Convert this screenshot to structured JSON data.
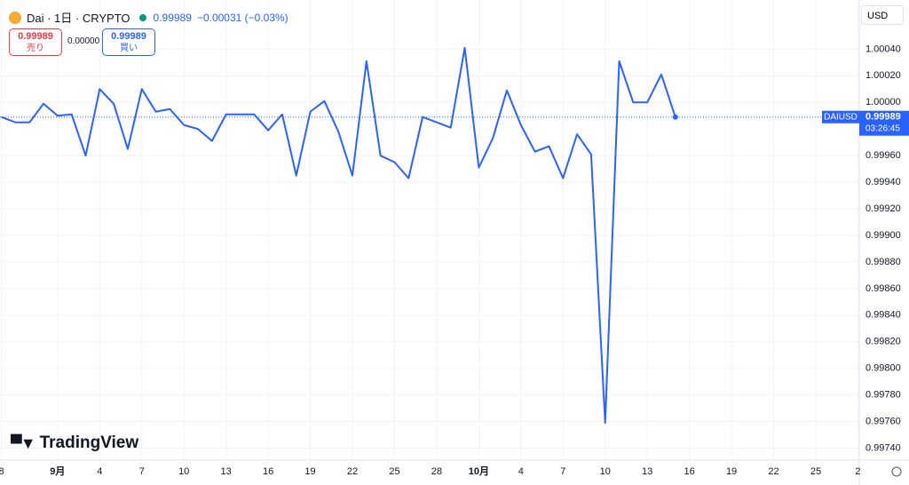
{
  "header": {
    "symbol": "Dai · 1日 · CRYPTO",
    "price": "0.99989",
    "change": "−0.00031 (−0.03%)",
    "sell_price": "0.99989",
    "sell_label": "売り",
    "spread": "0.00000",
    "buy_price": "0.99989",
    "buy_label": "買い",
    "currency": "USD",
    "logo": "TradingView"
  },
  "chart_data": {
    "type": "line",
    "x": [
      -4,
      -3,
      -2,
      -1,
      0,
      1,
      2,
      3,
      4,
      5,
      6,
      7,
      8,
      9,
      10,
      11,
      12,
      13,
      14,
      15,
      16,
      17,
      18,
      19,
      20,
      21,
      22,
      23,
      24,
      25,
      26,
      27,
      28,
      29,
      30,
      31,
      32,
      33,
      34,
      35,
      36,
      37,
      38,
      39,
      40,
      41,
      42,
      43,
      44
    ],
    "series": [
      {
        "name": "DAIUSD",
        "color": "#2962ff",
        "values": [
          0.99989,
          0.99985,
          0.99985,
          0.99999,
          0.9999,
          0.99991,
          0.9996,
          1.0001,
          0.99999,
          0.99965,
          1.0001,
          0.99993,
          0.99995,
          0.99983,
          0.9998,
          0.99971,
          0.99991,
          0.99991,
          0.99991,
          0.99979,
          0.99991,
          0.99945,
          0.99993,
          1.00001,
          0.99978,
          0.99945,
          1.00031,
          0.9996,
          0.99955,
          0.99943,
          0.99989,
          0.99985,
          0.99981,
          1.00041,
          0.99951,
          0.99973,
          1.00009,
          0.99983,
          0.99963,
          0.99967,
          0.99943,
          0.99976,
          0.99961,
          0.99759,
          1.00031,
          1.0,
          1.0,
          1.00021,
          0.99989
        ]
      }
    ],
    "price_label": {
      "symbol": "DAIUSD",
      "price": "0.99989",
      "countdown": "03:26:45"
    },
    "xlim": [
      -4.1,
      57.1
    ],
    "xticks": [
      {
        "value": -4,
        "label": "8"
      },
      {
        "value": 0,
        "label": "9月"
      },
      {
        "value": 3,
        "label": "4"
      },
      {
        "value": 6,
        "label": "7"
      },
      {
        "value": 9,
        "label": "10"
      },
      {
        "value": 12,
        "label": "13"
      },
      {
        "value": 15,
        "label": "16"
      },
      {
        "value": 18,
        "label": "19"
      },
      {
        "value": 21,
        "label": "22"
      },
      {
        "value": 24,
        "label": "25"
      },
      {
        "value": 27,
        "label": "28"
      },
      {
        "value": 30,
        "label": "10月"
      },
      {
        "value": 33,
        "label": "4"
      },
      {
        "value": 36,
        "label": "7"
      },
      {
        "value": 39,
        "label": "10"
      },
      {
        "value": 42,
        "label": "13"
      },
      {
        "value": 45,
        "label": "16"
      },
      {
        "value": 48,
        "label": "19"
      },
      {
        "value": 51,
        "label": "22"
      },
      {
        "value": 54,
        "label": "25"
      },
      {
        "value": 57,
        "label": "2"
      }
    ],
    "ylim": [
      0.99731,
      1.00077
    ],
    "yticks": [
      {
        "value": 1.0004,
        "label": "1.00040"
      },
      {
        "value": 1.0002,
        "label": "1.00020"
      },
      {
        "value": 1.0,
        "label": "1.00000"
      },
      {
        "value": 0.9996,
        "label": "0.99960"
      },
      {
        "value": 0.9994,
        "label": "0.99940"
      },
      {
        "value": 0.9992,
        "label": "0.99920"
      },
      {
        "value": 0.999,
        "label": "0.99900"
      },
      {
        "value": 0.9988,
        "label": "0.99880"
      },
      {
        "value": 0.9986,
        "label": "0.99860"
      },
      {
        "value": 0.9984,
        "label": "0.99840"
      },
      {
        "value": 0.9982,
        "label": "0.99820"
      },
      {
        "value": 0.998,
        "label": "0.99800"
      },
      {
        "value": 0.9978,
        "label": "0.99780"
      },
      {
        "value": 0.9976,
        "label": "0.99760"
      },
      {
        "value": 0.9974,
        "label": "0.99740"
      }
    ],
    "grid": true
  }
}
